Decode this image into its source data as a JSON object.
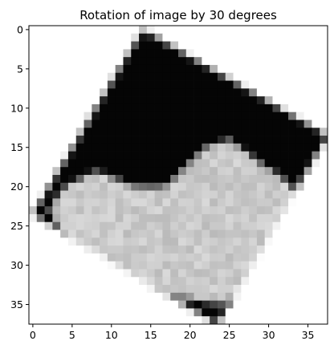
{
  "chart_data": {
    "type": "heatmap",
    "title": "Rotation of image by 30 degrees",
    "xlabel": "",
    "ylabel": "",
    "colormap": "gray",
    "grid": false,
    "image_size": [
      38,
      38
    ],
    "xlim": [
      -0.5,
      37.5
    ],
    "ylim": [
      37.5,
      -0.5
    ],
    "xticks": [
      0,
      5,
      10,
      15,
      20,
      25,
      30,
      35
    ],
    "yticks": [
      0,
      5,
      10,
      15,
      20,
      25,
      30,
      35
    ],
    "xtick_labels": [
      "0",
      "5",
      "10",
      "15",
      "20",
      "25",
      "30",
      "35"
    ],
    "ytick_labels": [
      "0",
      "5",
      "10",
      "15",
      "20",
      "25",
      "30",
      "35"
    ],
    "background_value": 1.0,
    "square_corners": [
      [
        14.0,
        0.0
      ],
      [
        37.5,
        13.5
      ],
      [
        23.5,
        37.5
      ],
      [
        0.0,
        23.5
      ]
    ],
    "dark_value": 0.02,
    "garment_value": 0.85,
    "garment_outline": [
      [
        8,
        18
      ],
      [
        13,
        20
      ],
      [
        17,
        20
      ],
      [
        22,
        15
      ],
      [
        25,
        14
      ],
      [
        29,
        17
      ],
      [
        32,
        19
      ],
      [
        35,
        22
      ],
      [
        33,
        26
      ],
      [
        30,
        30
      ],
      [
        27,
        33
      ],
      [
        24,
        35
      ],
      [
        18,
        34
      ],
      [
        13,
        32
      ],
      [
        8,
        29
      ],
      [
        4,
        26
      ],
      [
        2,
        23
      ],
      [
        4,
        20
      ]
    ]
  }
}
